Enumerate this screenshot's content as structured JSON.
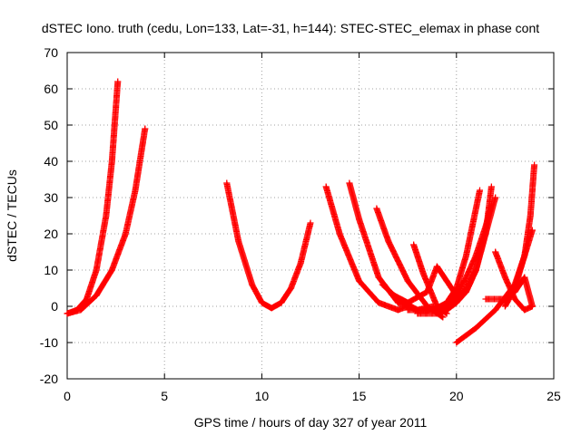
{
  "chart_data": {
    "type": "scatter",
    "title": "dSTEC Iono. truth (cedu, Lon=133, Lat=-31, h=144): STEC-STEC_elemax in phase cont",
    "xlabel": "GPS time / hours of day 327 of year 2011",
    "ylabel": "dSTEC  / TECUs",
    "xlim": [
      0,
      25
    ],
    "ylim": [
      -20,
      70
    ],
    "x_ticks": [
      "0",
      "5",
      "10",
      "15",
      "20",
      "25"
    ],
    "y_ticks": [
      "-20",
      "-10",
      "0",
      "10",
      "20",
      "30",
      "40",
      "50",
      "60",
      "70"
    ],
    "grid": true,
    "marker": "plus",
    "color": "#ff0000",
    "series": [
      {
        "x": [
          0.0,
          0.5,
          1.0,
          1.5,
          2.0,
          2.3,
          2.6
        ],
        "y": [
          -2,
          -1,
          2,
          10,
          25,
          40,
          62
        ]
      },
      {
        "x": [
          0.0,
          0.7,
          1.5,
          2.3,
          3.0,
          3.5,
          4.0
        ],
        "y": [
          -2,
          -1,
          3,
          10,
          20,
          32,
          49
        ]
      },
      {
        "x": [
          8.2,
          8.8,
          9.5,
          10.0,
          10.5,
          11.0,
          11.5,
          12.0,
          12.5
        ],
        "y": [
          34,
          18,
          6,
          1,
          -0.5,
          1,
          5,
          12,
          23
        ]
      },
      {
        "x": [
          13.3,
          14.0,
          15.0,
          16.0,
          17.0,
          17.5
        ],
        "y": [
          33,
          20,
          7,
          1,
          -1,
          0
        ]
      },
      {
        "x": [
          14.5,
          15.0,
          16.0,
          17.0,
          18.0,
          18.8
        ],
        "y": [
          34,
          24,
          8,
          1,
          -1,
          0
        ]
      },
      {
        "x": [
          15.9,
          16.5,
          17.5,
          18.5,
          19.3
        ],
        "y": [
          27,
          18,
          7,
          0,
          -3
        ]
      },
      {
        "x": [
          17.8,
          18.3,
          19.0,
          19.5
        ],
        "y": [
          17,
          9,
          0,
          -2
        ]
      },
      {
        "x": [
          16.2,
          17.0,
          18.0,
          18.5,
          19.0,
          19.5,
          20.0,
          20.5,
          21.2
        ],
        "y": [
          6,
          2,
          -1,
          -1,
          -0.5,
          1,
          5,
          14,
          32
        ]
      },
      {
        "x": [
          16.8,
          17.5,
          18.5,
          19.0,
          19.5,
          20.0,
          20.5,
          21.0
        ],
        "y": [
          3,
          1,
          4,
          11,
          7,
          3,
          4,
          10
        ]
      },
      {
        "x": [
          17.5,
          18.5,
          19.5,
          20.0,
          20.5,
          21.0,
          21.5,
          21.8
        ],
        "y": [
          -1,
          -1,
          0,
          2,
          5,
          10,
          20,
          33
        ]
      },
      {
        "x": [
          18.0,
          19.0,
          19.5,
          20.0,
          20.5,
          21.0,
          21.5,
          22.0
        ],
        "y": [
          -2,
          -2,
          -1,
          1,
          4,
          10,
          20,
          30
        ]
      },
      {
        "x": [
          19.0,
          19.5,
          20.0,
          20.5,
          21.0,
          21.5,
          21.8
        ],
        "y": [
          -1,
          0,
          3,
          8,
          14,
          22,
          28
        ]
      },
      {
        "x": [
          20.0,
          21.0,
          22.0,
          23.0,
          23.5,
          23.9
        ],
        "y": [
          -10,
          -6,
          -1,
          6,
          14,
          21
        ]
      },
      {
        "x": [
          21.5,
          22.5,
          23.0,
          23.5,
          23.9
        ],
        "y": [
          2,
          2,
          4,
          8,
          0
        ]
      },
      {
        "x": [
          22.0,
          22.5,
          23.0,
          23.5,
          23.9
        ],
        "y": [
          15,
          8,
          2,
          -1,
          0
        ]
      },
      {
        "x": [
          22.5,
          23.0,
          23.5,
          23.8,
          24.0
        ],
        "y": [
          0,
          5,
          14,
          25,
          39
        ]
      }
    ]
  }
}
